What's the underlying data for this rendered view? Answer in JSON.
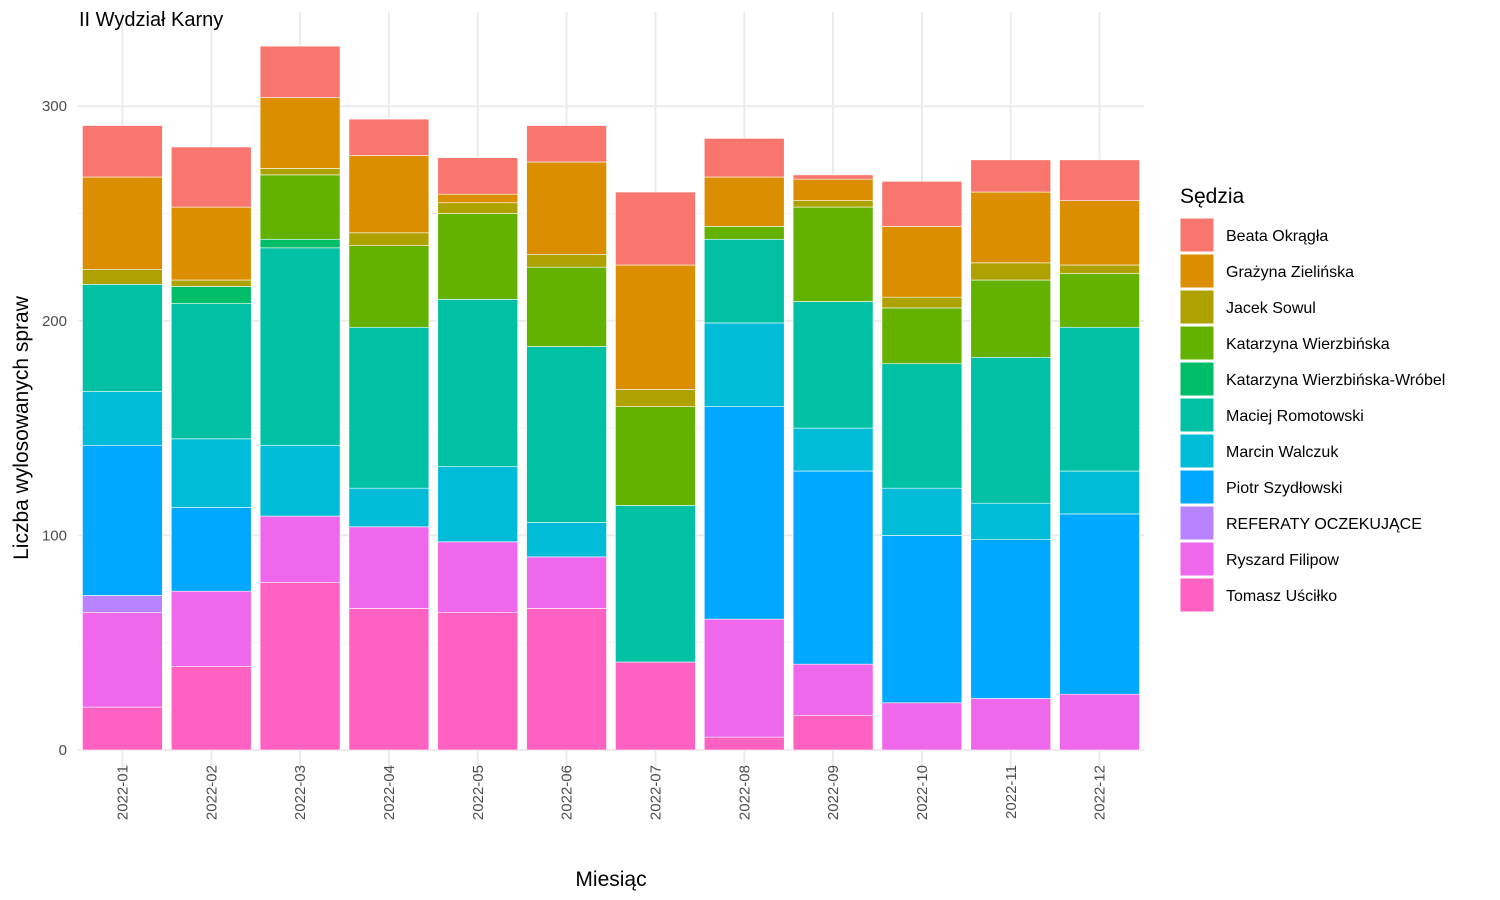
{
  "chart_data": {
    "type": "bar",
    "stacked": true,
    "title": "II Wydział Karny",
    "xlabel": "Miesiąc",
    "ylabel": "Liczba wylosowanych spraw",
    "ylim": [
      0,
      330
    ],
    "y_ticks": [
      0,
      100,
      200,
      300
    ],
    "grid": true,
    "legend_title": "Sędzia",
    "legend_position": "right",
    "categories": [
      "2022-01",
      "2022-02",
      "2022-03",
      "2022-04",
      "2022-05",
      "2022-06",
      "2022-07",
      "2022-08",
      "2022-09",
      "2022-10",
      "2022-11",
      "2022-12"
    ],
    "series": [
      {
        "name": "Tomasz Uściłko",
        "color": "#FF61C3",
        "values": [
          20,
          39,
          78,
          66,
          64,
          66,
          41,
          6,
          16,
          0,
          0,
          0
        ]
      },
      {
        "name": "Ryszard Filipow",
        "color": "#EF67EB",
        "values": [
          44,
          35,
          31,
          38,
          33,
          24,
          0,
          55,
          24,
          22,
          24,
          26
        ]
      },
      {
        "name": "REFERATY OCZEKUJĄCE",
        "color": "#B983FF",
        "values": [
          8,
          0,
          0,
          0,
          0,
          0,
          0,
          0,
          0,
          0,
          0,
          0
        ]
      },
      {
        "name": "Piotr Szydłowski",
        "color": "#00A9FF",
        "values": [
          70,
          39,
          0,
          0,
          0,
          0,
          0,
          99,
          90,
          78,
          74,
          84
        ]
      },
      {
        "name": "Marcin Walczuk",
        "color": "#00BCD8",
        "values": [
          25,
          32,
          33,
          18,
          35,
          16,
          0,
          39,
          20,
          22,
          17,
          20
        ]
      },
      {
        "name": "Maciej Romotowski",
        "color": "#00C1A3",
        "values": [
          50,
          63,
          92,
          75,
          78,
          82,
          73,
          39,
          59,
          58,
          68,
          67
        ]
      },
      {
        "name": "Katarzyna Wierzbińska-Wróbel",
        "color": "#00BE67",
        "values": [
          0,
          8,
          4,
          0,
          0,
          0,
          0,
          0,
          0,
          0,
          0,
          0
        ]
      },
      {
        "name": "Katarzyna Wierzbińska",
        "color": "#64B200",
        "values": [
          0,
          0,
          30,
          38,
          40,
          37,
          46,
          6,
          44,
          26,
          36,
          25
        ]
      },
      {
        "name": "Jacek Sowul",
        "color": "#AEA200",
        "values": [
          7,
          3,
          3,
          6,
          5,
          6,
          8,
          0,
          3,
          5,
          8,
          4
        ]
      },
      {
        "name": "Grażyna Zielińska",
        "color": "#DB8E00",
        "values": [
          43,
          34,
          33,
          36,
          4,
          43,
          58,
          23,
          10,
          33,
          33,
          30
        ]
      },
      {
        "name": "Beata Okrągła",
        "color": "#F8766D",
        "values": [
          24,
          28,
          24,
          17,
          17,
          17,
          34,
          18,
          2,
          21,
          15,
          19
        ]
      }
    ],
    "legend_order": [
      "Beata Okrągła",
      "Grażyna Zielińska",
      "Jacek Sowul",
      "Katarzyna Wierzbińska",
      "Katarzyna Wierzbińska-Wróbel",
      "Maciej Romotowski",
      "Marcin Walczuk",
      "Piotr Szydłowski",
      "REFERATY OCZEKUJĄCE",
      "Ryszard Filipow",
      "Tomasz Uściłko"
    ]
  }
}
